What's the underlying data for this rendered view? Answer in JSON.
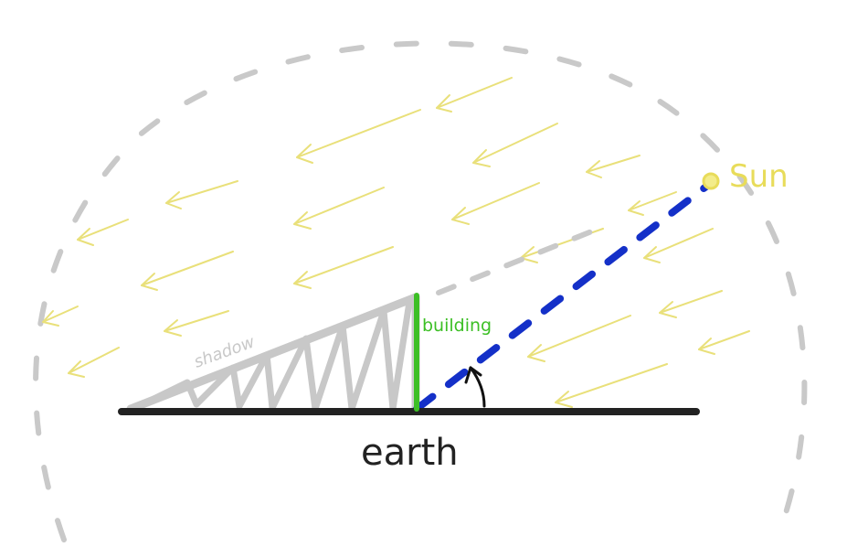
{
  "labels": {
    "sun": "Sun",
    "building": "building",
    "shadow": "shadow",
    "earth": "earth"
  },
  "colors": {
    "sun": "#e8dc5a",
    "sun_rays": "#e9e07a",
    "building": "#3cbf25",
    "shadow": "#c8c8c8",
    "sight_line": "#1430c8",
    "sky_dome": "#c9c9c9",
    "ground": "#222222",
    "angle_arrow": "#111111",
    "earth_text": "#222222"
  },
  "icons": {
    "angle_marker": "curved-arrow-icon",
    "sun_marker": "sun-icon"
  }
}
